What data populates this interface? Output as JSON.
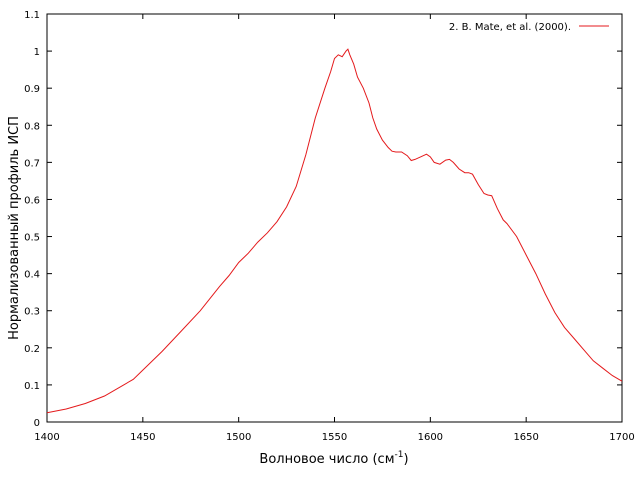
{
  "chart_data": {
    "type": "line",
    "xlabel": "Волновое число (см",
    "xlabel_sup": "-1",
    "xlabel_end": ")",
    "ylabel": "Нормализованный профиль ИСП",
    "xlim": [
      1400,
      1700
    ],
    "ylim": [
      0,
      1.1
    ],
    "x_ticks": [
      "1400",
      "1450",
      "1500",
      "1550",
      "1600",
      "1650",
      "1700"
    ],
    "y_ticks": [
      "0",
      "0.1",
      "0.2",
      "0.3",
      "0.4",
      "0.5",
      "0.6",
      "0.7",
      "0.8",
      "0.9",
      "1",
      "1.1"
    ],
    "grid": false,
    "legend_position": "top-right",
    "series": [
      {
        "name": "2. B. Mate, et al. (2000).",
        "color": "#e41a1c",
        "x": [
          1400,
          1410,
          1420,
          1430,
          1440,
          1445,
          1450,
          1460,
          1470,
          1480,
          1490,
          1495,
          1500,
          1505,
          1510,
          1515,
          1520,
          1525,
          1530,
          1535,
          1540,
          1545,
          1548,
          1550,
          1552,
          1554,
          1556,
          1557,
          1558,
          1560,
          1562,
          1565,
          1568,
          1570,
          1572,
          1575,
          1578,
          1580,
          1582,
          1585,
          1588,
          1590,
          1592,
          1595,
          1598,
          1600,
          1602,
          1605,
          1608,
          1610,
          1612,
          1615,
          1618,
          1620,
          1622,
          1625,
          1628,
          1630,
          1632,
          1635,
          1638,
          1640,
          1645,
          1650,
          1655,
          1660,
          1665,
          1670,
          1675,
          1680,
          1685,
          1690,
          1695,
          1700
        ],
        "y": [
          0.025,
          0.035,
          0.05,
          0.07,
          0.1,
          0.115,
          0.14,
          0.19,
          0.245,
          0.3,
          0.365,
          0.395,
          0.43,
          0.455,
          0.485,
          0.51,
          0.54,
          0.58,
          0.635,
          0.72,
          0.82,
          0.9,
          0.945,
          0.98,
          0.99,
          0.985,
          1.0,
          1.005,
          0.99,
          0.965,
          0.93,
          0.9,
          0.86,
          0.82,
          0.79,
          0.76,
          0.74,
          0.73,
          0.728,
          0.728,
          0.718,
          0.705,
          0.708,
          0.715,
          0.722,
          0.715,
          0.7,
          0.695,
          0.706,
          0.708,
          0.7,
          0.682,
          0.672,
          0.672,
          0.668,
          0.64,
          0.616,
          0.612,
          0.61,
          0.575,
          0.545,
          0.535,
          0.5,
          0.45,
          0.4,
          0.345,
          0.295,
          0.255,
          0.225,
          0.195,
          0.165,
          0.145,
          0.125,
          0.11
        ]
      }
    ]
  }
}
